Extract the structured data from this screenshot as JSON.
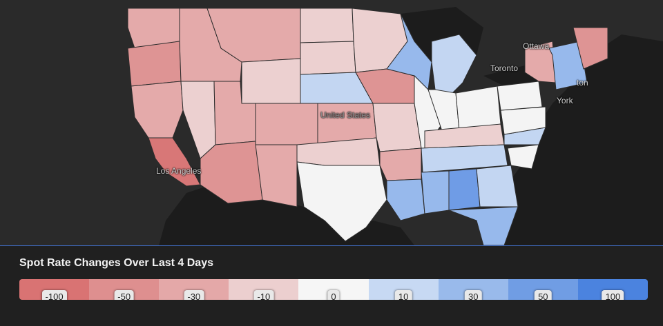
{
  "map": {
    "cities": [
      {
        "id": "ottawa",
        "label": "Ottawa"
      },
      {
        "id": "toronto",
        "label": "Toronto"
      },
      {
        "id": "boston",
        "label": "ton"
      },
      {
        "id": "newyork",
        "label": "York"
      },
      {
        "id": "losangeles",
        "label": "Los Angeles"
      },
      {
        "id": "unitedstates",
        "label": "United States"
      }
    ],
    "colors": {
      "neg100": "#d87777",
      "neg50": "#de9494",
      "neg30": "#e4aaaa",
      "neg10": "#ecd0d0",
      "zero": "#f4f4f4",
      "pos10": "#c3d6f2",
      "pos30": "#97b9ec",
      "pos50": "#6f9ce6",
      "pos100": "#4a82e0",
      "land": "#2a2a2a",
      "water": "#1c1c1c"
    }
  },
  "legend": {
    "title": "Spot Rate Changes Over Last 4 Days",
    "items": [
      {
        "label": "-100",
        "color": "#d97373"
      },
      {
        "label": "-50",
        "color": "#de8f8f"
      },
      {
        "label": "-30",
        "color": "#e4a8a8"
      },
      {
        "label": "-10",
        "color": "#eccfcf"
      },
      {
        "label": "0",
        "color": "#f6f6f6"
      },
      {
        "label": "10",
        "color": "#c7d9f3"
      },
      {
        "label": "30",
        "color": "#99baeb"
      },
      {
        "label": "50",
        "color": "#709de4"
      },
      {
        "label": "100",
        "color": "#4b83df"
      }
    ]
  }
}
